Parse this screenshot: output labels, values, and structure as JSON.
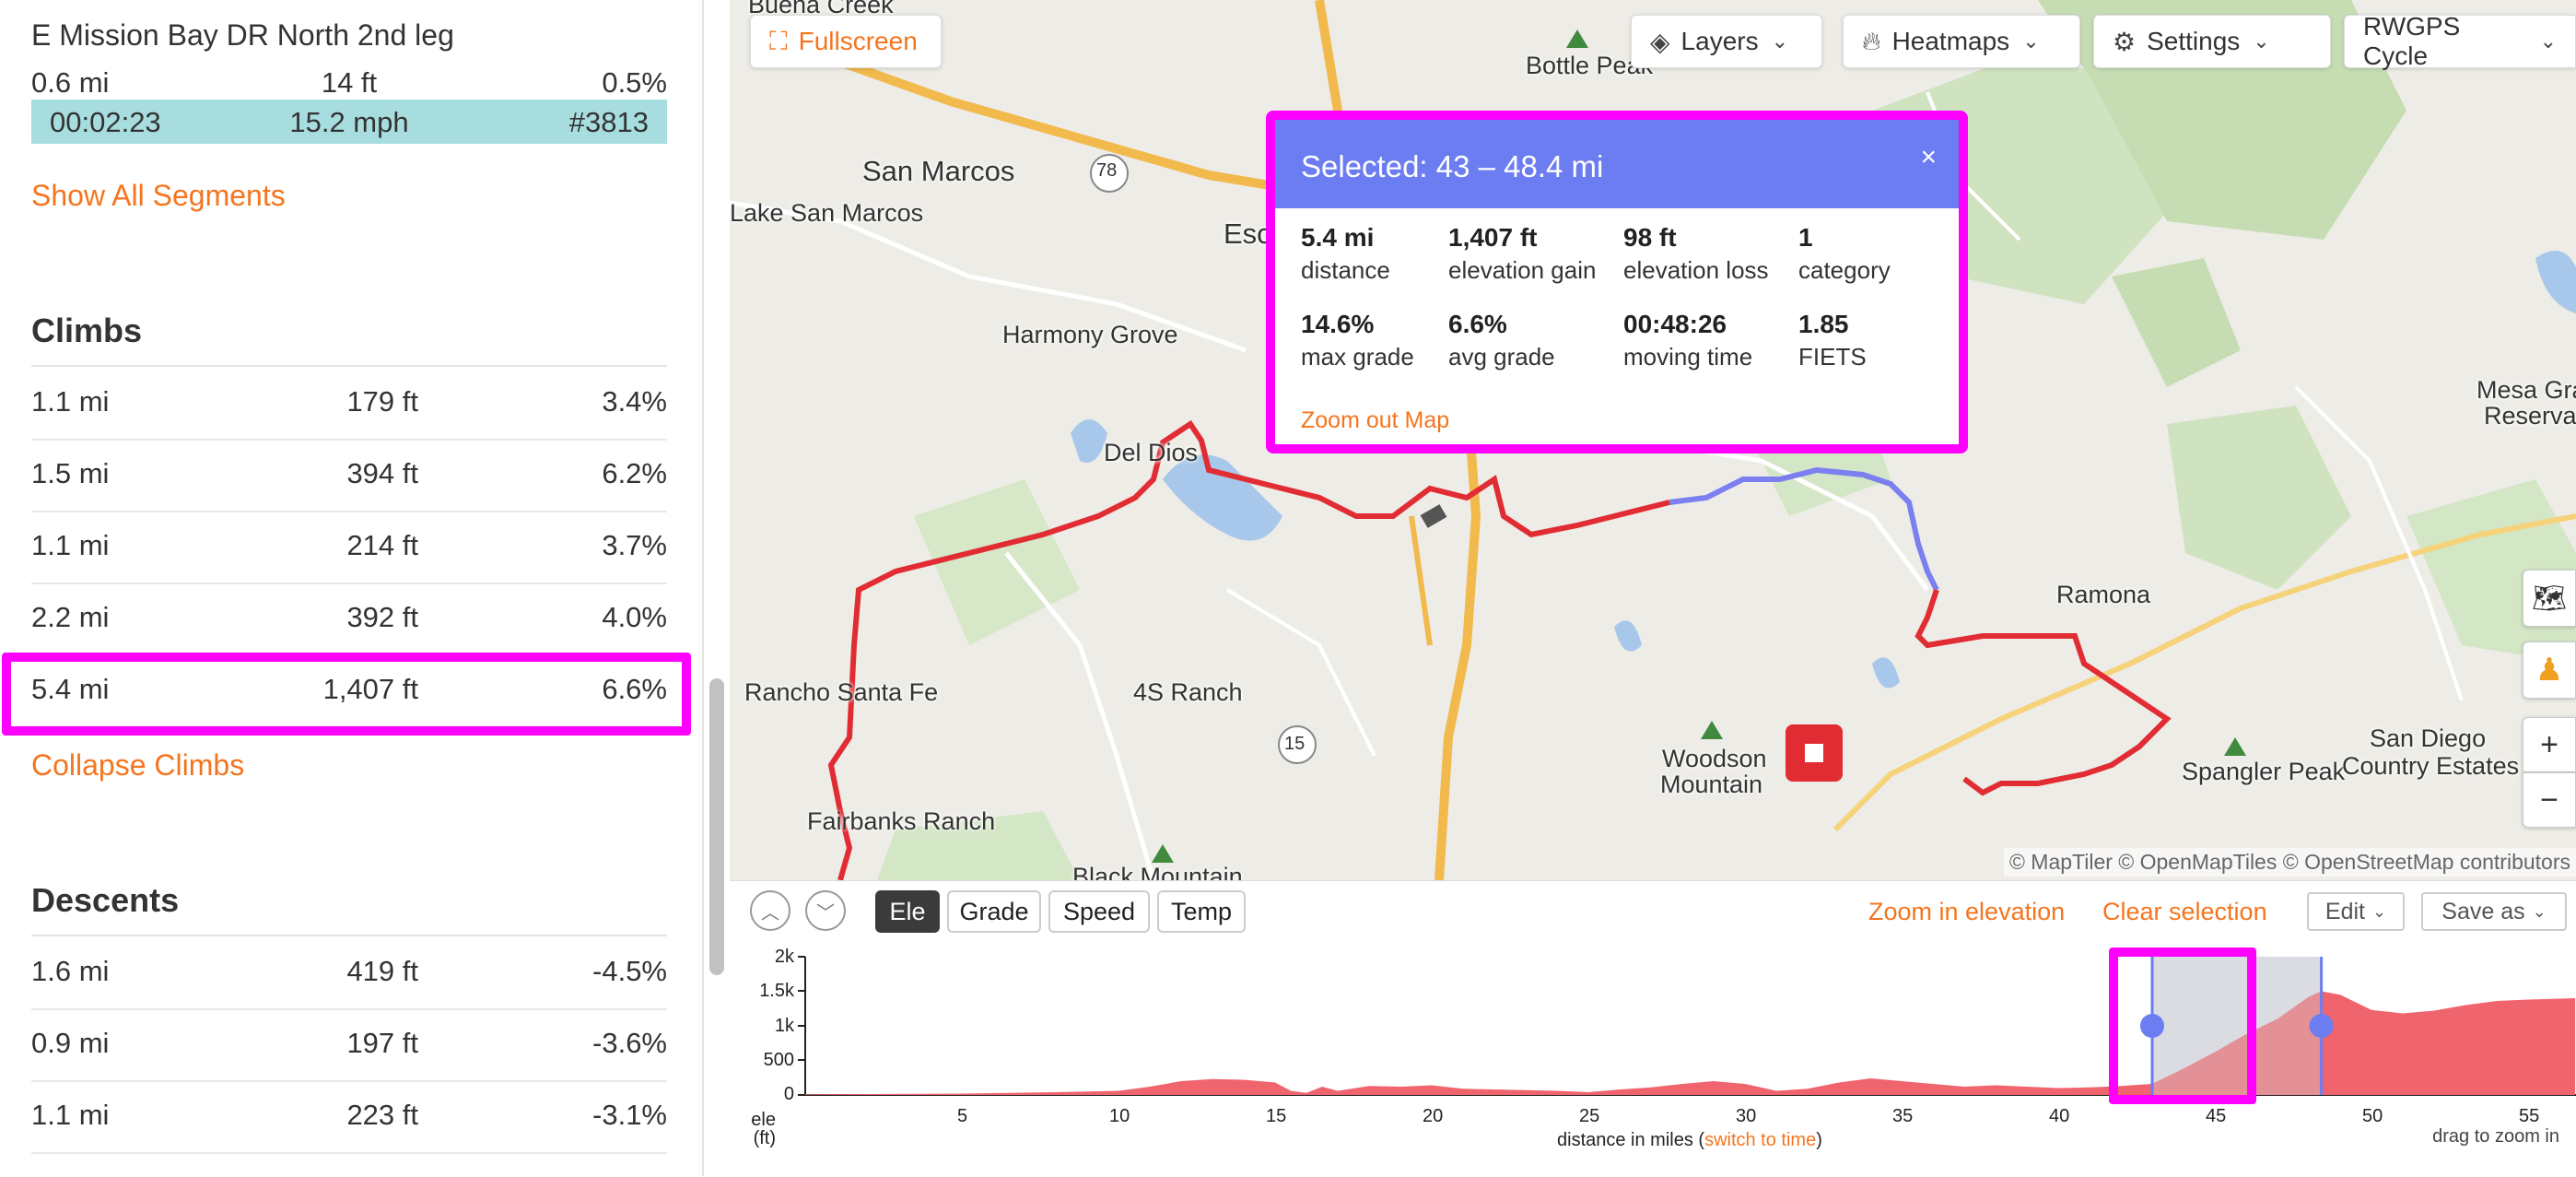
{
  "left": {
    "segment": {
      "title": "E Mission Bay DR North 2nd leg",
      "distance": "0.6 mi",
      "elevation": "14 ft",
      "grade": "0.5%",
      "time": "00:02:23",
      "speed": "15.2 mph",
      "rank": "#3813"
    },
    "show_all_segments": "Show All Segments",
    "climbs_title": "Climbs",
    "climbs": [
      {
        "distance": "1.1 mi",
        "elevation": "179 ft",
        "grade": "3.4%"
      },
      {
        "distance": "1.5 mi",
        "elevation": "394 ft",
        "grade": "6.2%"
      },
      {
        "distance": "1.1 mi",
        "elevation": "214 ft",
        "grade": "3.7%"
      },
      {
        "distance": "2.2 mi",
        "elevation": "392 ft",
        "grade": "4.0%"
      },
      {
        "distance": "5.4 mi",
        "elevation": "1,407 ft",
        "grade": "6.6%"
      }
    ],
    "collapse_climbs": "Collapse Climbs",
    "descents_title": "Descents",
    "descents": [
      {
        "distance": "1.6 mi",
        "elevation": "419 ft",
        "grade": "-4.5%"
      },
      {
        "distance": "0.9 mi",
        "elevation": "197 ft",
        "grade": "-3.6%"
      },
      {
        "distance": "1.1 mi",
        "elevation": "223 ft",
        "grade": "-3.1%"
      }
    ]
  },
  "map": {
    "fullscreen": "Fullscreen",
    "layers": "Layers",
    "heatmaps": "Heatmaps",
    "settings": "Settings",
    "route_type": "RWGPS Cycle",
    "labels": {
      "buena_creek": "Buena Creek",
      "bottle_peak": "Bottle Peak",
      "san_marcos": "San Marcos",
      "lake_san_marcos": "Lake San Marcos",
      "esc": "Esc",
      "harmony_grove": "Harmony Grove",
      "del_dios": "Del Dios",
      "mesa_grande": "Mesa Gran",
      "reservation": "Reservati",
      "ramona": "Ramona",
      "rancho_santa_fe": "Rancho Santa Fe",
      "four_s_ranch": "4S Ranch",
      "woodson_mountain_1": "Woodson",
      "woodson_mountain_2": "Mountain",
      "spangler_peak": "Spangler Peak",
      "san_diego_country_1": "San Diego",
      "san_diego_country_2": "Country Estates",
      "fairbanks_ranch": "Fairbanks Ranch",
      "black_mountain": "Black Mountain",
      "hwy_78": "78",
      "hwy_15": "15"
    },
    "attribution": "© MapTiler © OpenMapTiles © OpenStreetMap contributors",
    "popup": {
      "title": "Selected: 43 – 48.4 mi",
      "close": "×",
      "stats": [
        {
          "value": "5.4 mi",
          "label": "distance"
        },
        {
          "value": "1,407 ft",
          "label": "elevation gain"
        },
        {
          "value": "98 ft",
          "label": "elevation loss"
        },
        {
          "value": "1",
          "label": "category"
        },
        {
          "value": "14.6%",
          "label": "max grade"
        },
        {
          "value": "6.6%",
          "label": "avg grade"
        },
        {
          "value": "00:48:26",
          "label": "moving time"
        },
        {
          "value": "1.85",
          "label": "FIETS"
        }
      ],
      "zoom_out": "Zoom out Map"
    }
  },
  "elevation": {
    "tabs": [
      "Ele",
      "Grade",
      "Speed",
      "Temp"
    ],
    "active_tab": "Ele",
    "zoom_in": "Zoom in elevation",
    "clear_selection": "Clear selection",
    "edit": "Edit",
    "save_as": "Save as",
    "y_ticks": [
      "2k",
      "1.5k",
      "1k",
      "500",
      "0"
    ],
    "y_unit_1": "ele",
    "y_unit_2": "(ft)",
    "x_ticks": [
      "5",
      "10",
      "15",
      "20",
      "25",
      "30",
      "35",
      "40",
      "45",
      "50",
      "55"
    ],
    "x_title": "distance in miles (",
    "x_switch": "switch to time",
    "x_title_end": ")",
    "drag_note": "drag to zoom in",
    "selection": {
      "start_mi": 43,
      "end_mi": 48.4
    },
    "colors": {
      "fill": "#f0646e",
      "selection": "#d8d8dc",
      "handle": "#6b7df0"
    }
  }
}
